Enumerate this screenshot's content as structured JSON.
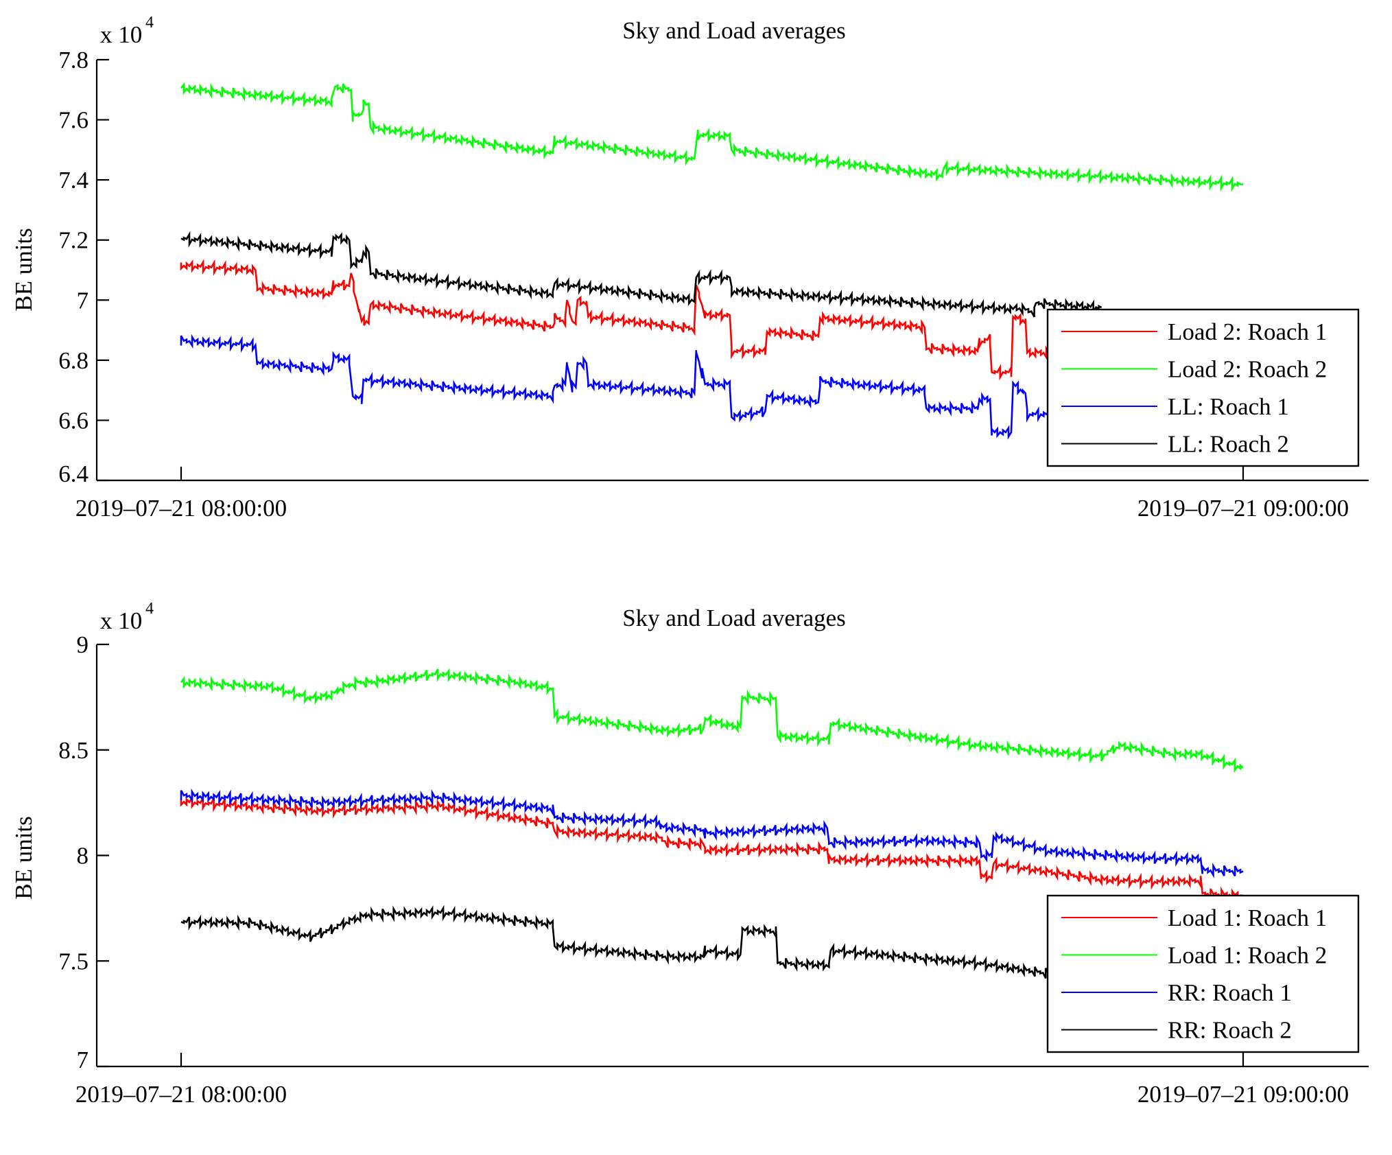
{
  "figure": {
    "background": "#ffffff"
  },
  "chart_data": [
    {
      "type": "line",
      "title": "Sky and Load averages",
      "xlabel": "",
      "ylabel": "BE units",
      "y_multiplier_label": "x 10",
      "y_multiplier_exponent": "4",
      "ylim": [
        6.4,
        7.8
      ],
      "yticks": [
        6.4,
        6.6,
        6.8,
        7.0,
        7.2,
        7.4,
        7.6,
        7.8
      ],
      "ytick_labels": [
        "6.4",
        "6.6",
        "6.8",
        "7",
        "7.2",
        "7.4",
        "7.6",
        "7.8"
      ],
      "x_unit": "minutes after 2019-07-21 08:00:00",
      "xlim": [
        -7.5,
        66
      ],
      "xticks": [
        0,
        60
      ],
      "xtick_labels": [
        "2019–07–21 08:00:00",
        "2019–07–21 09:00:00"
      ],
      "grid": false,
      "legend_position": "bottom-right",
      "series": [
        {
          "name": "Load 2: Roach 1",
          "color": "#ff0000",
          "points": [
            [
              0,
              7.115
            ],
            [
              4.2,
              7.1
            ],
            [
              4.3,
              7.04
            ],
            [
              8.5,
              7.02
            ],
            [
              8.6,
              7.05
            ],
            [
              9.5,
              7.05
            ],
            [
              9.6,
              7.09
            ],
            [
              9.9,
              7.0
            ],
            [
              10.2,
              6.93
            ],
            [
              10.6,
              6.93
            ],
            [
              10.7,
              6.985
            ],
            [
              21,
              6.91
            ],
            [
              21.1,
              6.94
            ],
            [
              21.7,
              6.93
            ],
            [
              21.8,
              7.0
            ],
            [
              22.1,
              6.93
            ],
            [
              22.3,
              6.93
            ],
            [
              22.4,
              7.0
            ],
            [
              22.9,
              6.99
            ],
            [
              23,
              6.945
            ],
            [
              29,
              6.905
            ],
            [
              29.1,
              7.05
            ],
            [
              29.6,
              6.95
            ],
            [
              31,
              6.95
            ],
            [
              31.1,
              6.83
            ],
            [
              33,
              6.83
            ],
            [
              33.1,
              6.895
            ],
            [
              36,
              6.88
            ],
            [
              36.1,
              6.94
            ],
            [
              42,
              6.91
            ],
            [
              42.1,
              6.84
            ],
            [
              45,
              6.83
            ],
            [
              45.1,
              6.86
            ],
            [
              45.7,
              6.87
            ],
            [
              45.8,
              6.76
            ],
            [
              46.9,
              6.76
            ],
            [
              47,
              6.945
            ],
            [
              47.7,
              6.93
            ],
            [
              47.8,
              6.825
            ],
            [
              60,
              6.82
            ]
          ]
        },
        {
          "name": "Load 2: Roach 2",
          "color": "#00ff00",
          "points": [
            [
              0,
              7.705
            ],
            [
              8.5,
              7.66
            ],
            [
              8.7,
              7.71
            ],
            [
              9.6,
              7.7
            ],
            [
              9.7,
              7.61
            ],
            [
              10.2,
              7.62
            ],
            [
              10.3,
              7.65
            ],
            [
              10.6,
              7.65
            ],
            [
              10.7,
              7.575
            ],
            [
              21,
              7.49
            ],
            [
              21.1,
              7.53
            ],
            [
              29,
              7.47
            ],
            [
              29.2,
              7.55
            ],
            [
              31,
              7.545
            ],
            [
              31.1,
              7.5
            ],
            [
              43,
              7.415
            ],
            [
              43.1,
              7.44
            ],
            [
              60,
              7.385
            ]
          ]
        },
        {
          "name": "LL: Roach 1",
          "color": "#0000ff",
          "points": [
            [
              0,
              6.865
            ],
            [
              4.2,
              6.85
            ],
            [
              4.3,
              6.79
            ],
            [
              8.5,
              6.77
            ],
            [
              8.6,
              6.81
            ],
            [
              9.5,
              6.8
            ],
            [
              9.7,
              6.68
            ],
            [
              10.2,
              6.67
            ],
            [
              10.3,
              6.735
            ],
            [
              21,
              6.68
            ],
            [
              21.1,
              6.715
            ],
            [
              21.7,
              6.72
            ],
            [
              21.8,
              6.79
            ],
            [
              22.1,
              6.71
            ],
            [
              22.3,
              6.71
            ],
            [
              22.4,
              6.79
            ],
            [
              22.9,
              6.79
            ],
            [
              23,
              6.72
            ],
            [
              29,
              6.69
            ],
            [
              29.1,
              6.83
            ],
            [
              29.6,
              6.72
            ],
            [
              31,
              6.72
            ],
            [
              31.1,
              6.61
            ],
            [
              33,
              6.63
            ],
            [
              33.1,
              6.68
            ],
            [
              36,
              6.66
            ],
            [
              36.1,
              6.73
            ],
            [
              42,
              6.7
            ],
            [
              42.1,
              6.64
            ],
            [
              45,
              6.64
            ],
            [
              45.1,
              6.67
            ],
            [
              45.7,
              6.67
            ],
            [
              45.8,
              6.56
            ],
            [
              46.9,
              6.56
            ],
            [
              47,
              6.72
            ],
            [
              47.7,
              6.69
            ],
            [
              47.8,
              6.62
            ],
            [
              52,
              6.62
            ]
          ]
        },
        {
          "name": "LL: Roach 2",
          "color": "#000000",
          "points": [
            [
              0,
              7.205
            ],
            [
              8.5,
              7.16
            ],
            [
              8.6,
              7.21
            ],
            [
              9.5,
              7.2
            ],
            [
              9.6,
              7.12
            ],
            [
              10.2,
              7.13
            ],
            [
              10.3,
              7.16
            ],
            [
              10.6,
              7.16
            ],
            [
              10.7,
              7.09
            ],
            [
              21,
              7.02
            ],
            [
              21.1,
              7.055
            ],
            [
              29,
              7.0
            ],
            [
              29.1,
              7.075
            ],
            [
              31,
              7.075
            ],
            [
              31.1,
              7.03
            ],
            [
              47,
              6.97
            ],
            [
              47.2,
              6.975
            ],
            [
              48.2,
              6.96
            ],
            [
              48.3,
              6.99
            ],
            [
              52,
              6.975
            ]
          ]
        }
      ]
    },
    {
      "type": "line",
      "title": "Sky and Load averages",
      "xlabel": "",
      "ylabel": "BE units",
      "y_multiplier_label": "x 10",
      "y_multiplier_exponent": "4",
      "ylim": [
        7.0,
        9.0
      ],
      "yticks": [
        7.0,
        7.5,
        8.0,
        8.5,
        9.0
      ],
      "ytick_labels": [
        "7",
        "7.5",
        "8",
        "8.5",
        "9"
      ],
      "x_unit": "minutes after 2019-07-21 08:00:00",
      "xlim": [
        -7.5,
        66
      ],
      "xticks": [
        0,
        60
      ],
      "xtick_labels": [
        "2019–07–21 08:00:00",
        "2019–07–21 09:00:00"
      ],
      "grid": false,
      "legend_position": "bottom-right",
      "series": [
        {
          "name": "Load 1: Roach 1",
          "color": "#ff0000",
          "points": [
            [
              0,
              8.255
            ],
            [
              8,
              8.21
            ],
            [
              14.5,
              8.235
            ],
            [
              21,
              8.15
            ],
            [
              21.1,
              8.115
            ],
            [
              27,
              8.085
            ],
            [
              27.5,
              8.06
            ],
            [
              29.5,
              8.055
            ],
            [
              29.6,
              8.025
            ],
            [
              36.5,
              8.03
            ],
            [
              36.6,
              7.98
            ],
            [
              42,
              7.975
            ],
            [
              45.1,
              7.975
            ],
            [
              45.2,
              7.9
            ],
            [
              45.8,
              7.9
            ],
            [
              45.9,
              7.96
            ],
            [
              52,
              7.885
            ],
            [
              55,
              7.875
            ],
            [
              57.6,
              7.88
            ],
            [
              57.7,
              7.82
            ],
            [
              60,
              7.81
            ]
          ]
        },
        {
          "name": "Load 1: Roach 2",
          "color": "#00ff00",
          "points": [
            [
              0,
              8.82
            ],
            [
              5,
              8.8
            ],
            [
              7.3,
              8.745
            ],
            [
              8.5,
              8.76
            ],
            [
              9,
              8.79
            ],
            [
              10,
              8.82
            ],
            [
              10.6,
              8.82
            ],
            [
              14.5,
              8.86
            ],
            [
              19,
              8.82
            ],
            [
              21,
              8.79
            ],
            [
              21.1,
              8.66
            ],
            [
              27.5,
              8.59
            ],
            [
              29.5,
              8.6
            ],
            [
              29.6,
              8.645
            ],
            [
              31,
              8.615
            ],
            [
              31.6,
              8.61
            ],
            [
              31.7,
              8.75
            ],
            [
              33.6,
              8.74
            ],
            [
              33.7,
              8.565
            ],
            [
              36.6,
              8.55
            ],
            [
              36.7,
              8.625
            ],
            [
              45,
              8.52
            ],
            [
              52,
              8.47
            ],
            [
              53,
              8.52
            ],
            [
              56,
              8.48
            ],
            [
              57.5,
              8.48
            ],
            [
              60,
              8.415
            ]
          ]
        },
        {
          "name": "RR: Roach 1",
          "color": "#0000ff",
          "points": [
            [
              0,
              8.285
            ],
            [
              8,
              8.25
            ],
            [
              14.5,
              8.275
            ],
            [
              21,
              8.22
            ],
            [
              21.1,
              8.18
            ],
            [
              27,
              8.16
            ],
            [
              27.1,
              8.135
            ],
            [
              29.5,
              8.12
            ],
            [
              29.6,
              8.105
            ],
            [
              36.5,
              8.13
            ],
            [
              36.6,
              8.06
            ],
            [
              42,
              8.07
            ],
            [
              45.1,
              8.06
            ],
            [
              45.2,
              8.0
            ],
            [
              45.8,
              8.0
            ],
            [
              45.9,
              8.09
            ],
            [
              49,
              8.02
            ],
            [
              55,
              7.985
            ],
            [
              57.6,
              7.985
            ],
            [
              57.7,
              7.93
            ],
            [
              60,
              7.925
            ]
          ]
        },
        {
          "name": "RR: Roach 2",
          "color": "#000000",
          "points": [
            [
              0,
              7.685
            ],
            [
              4,
              7.68
            ],
            [
              7.3,
              7.615
            ],
            [
              8.5,
              7.65
            ],
            [
              9.5,
              7.69
            ],
            [
              10.6,
              7.72
            ],
            [
              14.5,
              7.73
            ],
            [
              19,
              7.69
            ],
            [
              21,
              7.675
            ],
            [
              21.1,
              7.57
            ],
            [
              27.5,
              7.52
            ],
            [
              29.5,
              7.52
            ],
            [
              29.6,
              7.55
            ],
            [
              31,
              7.535
            ],
            [
              31.6,
              7.53
            ],
            [
              31.7,
              7.645
            ],
            [
              33.6,
              7.64
            ],
            [
              33.7,
              7.49
            ],
            [
              36.6,
              7.48
            ],
            [
              36.7,
              7.55
            ],
            [
              45,
              7.49
            ],
            [
              49,
              7.44
            ]
          ]
        }
      ]
    }
  ]
}
